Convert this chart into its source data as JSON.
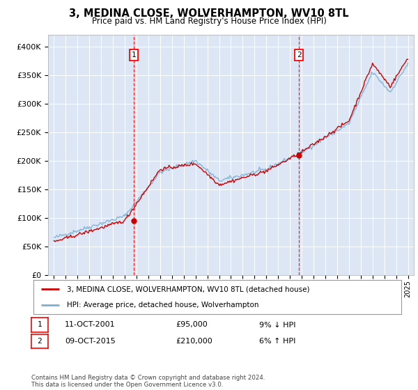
{
  "title": "3, MEDINA CLOSE, WOLVERHAMPTON, WV10 8TL",
  "subtitle": "Price paid vs. HM Land Registry's House Price Index (HPI)",
  "background_color": "#dce6f5",
  "plot_bg_color": "#dce6f5",
  "outer_bg_color": "#ffffff",
  "hpi_color": "#7ab0d4",
  "price_color": "#cc0000",
  "ylim": [
    0,
    420000
  ],
  "yticks": [
    0,
    50000,
    100000,
    150000,
    200000,
    250000,
    300000,
    350000,
    400000
  ],
  "ytick_labels": [
    "£0",
    "£50K",
    "£100K",
    "£150K",
    "£200K",
    "£250K",
    "£300K",
    "£350K",
    "£400K"
  ],
  "year_start": 1995,
  "year_end": 2025,
  "transaction1_year": 2001.78,
  "transaction1_price": 95000,
  "transaction1_label": "1",
  "transaction2_year": 2015.77,
  "transaction2_price": 210000,
  "transaction2_label": "2",
  "legend_line1": "3, MEDINA CLOSE, WOLVERHAMPTON, WV10 8TL (detached house)",
  "legend_line2": "HPI: Average price, detached house, Wolverhampton",
  "table_row1": [
    "1",
    "11-OCT-2001",
    "£95,000",
    "9% ↓ HPI"
  ],
  "table_row2": [
    "2",
    "09-OCT-2015",
    "£210,000",
    "6% ↑ HPI"
  ],
  "footnote": "Contains HM Land Registry data © Crown copyright and database right 2024.\nThis data is licensed under the Open Government Licence v3.0."
}
